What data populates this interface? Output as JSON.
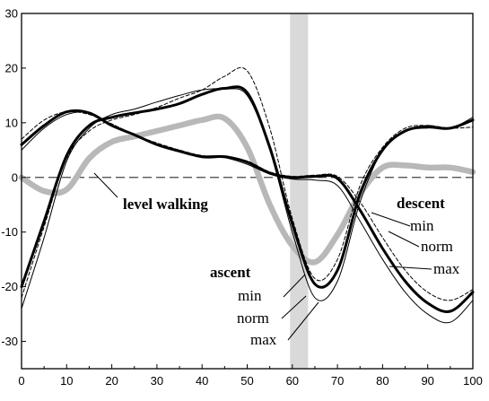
{
  "chart_data": {
    "type": "line",
    "x": [
      0,
      5,
      10,
      15,
      20,
      25,
      30,
      35,
      40,
      45,
      50,
      55,
      60,
      65,
      70,
      75,
      80,
      85,
      90,
      95,
      100
    ],
    "xlim": [
      0,
      100
    ],
    "ylim": [
      -35,
      30
    ],
    "xticks": [
      "0",
      "10",
      "20",
      "30",
      "40",
      "50",
      "60",
      "70",
      "80",
      "90",
      "100"
    ],
    "yticks": [
      "30",
      "20",
      "10",
      "0",
      "-10",
      "-20",
      "-30"
    ],
    "shaded_band": [
      59.5,
      63.5
    ],
    "zero_line": "dashed",
    "grid": false,
    "series": [
      {
        "id": "level",
        "style": "thick-gray",
        "color": "#b8b8b8",
        "values": [
          0,
          -2.5,
          -2.2,
          3.5,
          6.5,
          7.5,
          8.5,
          9.5,
          10.5,
          10.8,
          5.5,
          -5,
          -12.5,
          -15.5,
          -10.5,
          -3,
          1.8,
          2.2,
          1.8,
          1.8,
          1
        ]
      },
      {
        "id": "descent-norm",
        "style": "thick",
        "color": "#000000",
        "values": [
          6,
          9.5,
          12,
          11.8,
          9.5,
          7.8,
          6,
          4.8,
          3.8,
          3.8,
          2.8,
          0.8,
          0,
          0.2,
          -0.2,
          -6,
          -13,
          -19,
          -23,
          -24.5,
          -21
        ]
      },
      {
        "id": "descent-min",
        "style": "dashed",
        "color": "#000000",
        "values": [
          7,
          10.5,
          12,
          11.5,
          9.8,
          7.8,
          6.3,
          5,
          4,
          3.8,
          3,
          1,
          0.2,
          0.4,
          0.2,
          -4.5,
          -11,
          -17,
          -21,
          -22.5,
          -20.5
        ]
      },
      {
        "id": "descent-max",
        "style": "thin",
        "color": "#000000",
        "values": [
          5,
          9,
          11.5,
          11.8,
          9.6,
          7.8,
          6,
          4.8,
          3.6,
          3.6,
          2.4,
          0.6,
          -0.3,
          -0.5,
          -1.5,
          -8,
          -15,
          -21,
          -25,
          -26.5,
          -22.5
        ]
      },
      {
        "id": "ascent-norm",
        "style": "thick",
        "color": "#000000",
        "values": [
          -20,
          -8,
          4,
          9.5,
          11,
          11.8,
          12.5,
          13.5,
          15.2,
          16.3,
          15.5,
          5.5,
          -8.5,
          -19.5,
          -17,
          -3,
          5,
          8.5,
          9.2,
          9,
          10.5
        ]
      },
      {
        "id": "ascent-min",
        "style": "dashed",
        "color": "#000000",
        "values": [
          -22,
          -9,
          3.5,
          8.5,
          10.5,
          11.5,
          12.8,
          14.5,
          16,
          18.5,
          19.5,
          9,
          -7.5,
          -18.5,
          -15,
          -1.5,
          5.5,
          9,
          9.5,
          9,
          9.2
        ]
      },
      {
        "id": "ascent-max",
        "style": "thin",
        "color": "#000000",
        "values": [
          -24,
          -11,
          3,
          9,
          11.5,
          12.5,
          13.8,
          15,
          16,
          16.2,
          15,
          5,
          -10,
          -22,
          -19,
          -4.5,
          5,
          8.5,
          9.5,
          9,
          11
        ]
      }
    ],
    "annotations": {
      "level": "level walking",
      "descent": "descent",
      "ascent": "ascent",
      "descent_min": "min",
      "descent_norm": "norm",
      "descent_max": "max",
      "ascent_min": "min",
      "ascent_norm": "norm",
      "ascent_max": "max"
    }
  }
}
